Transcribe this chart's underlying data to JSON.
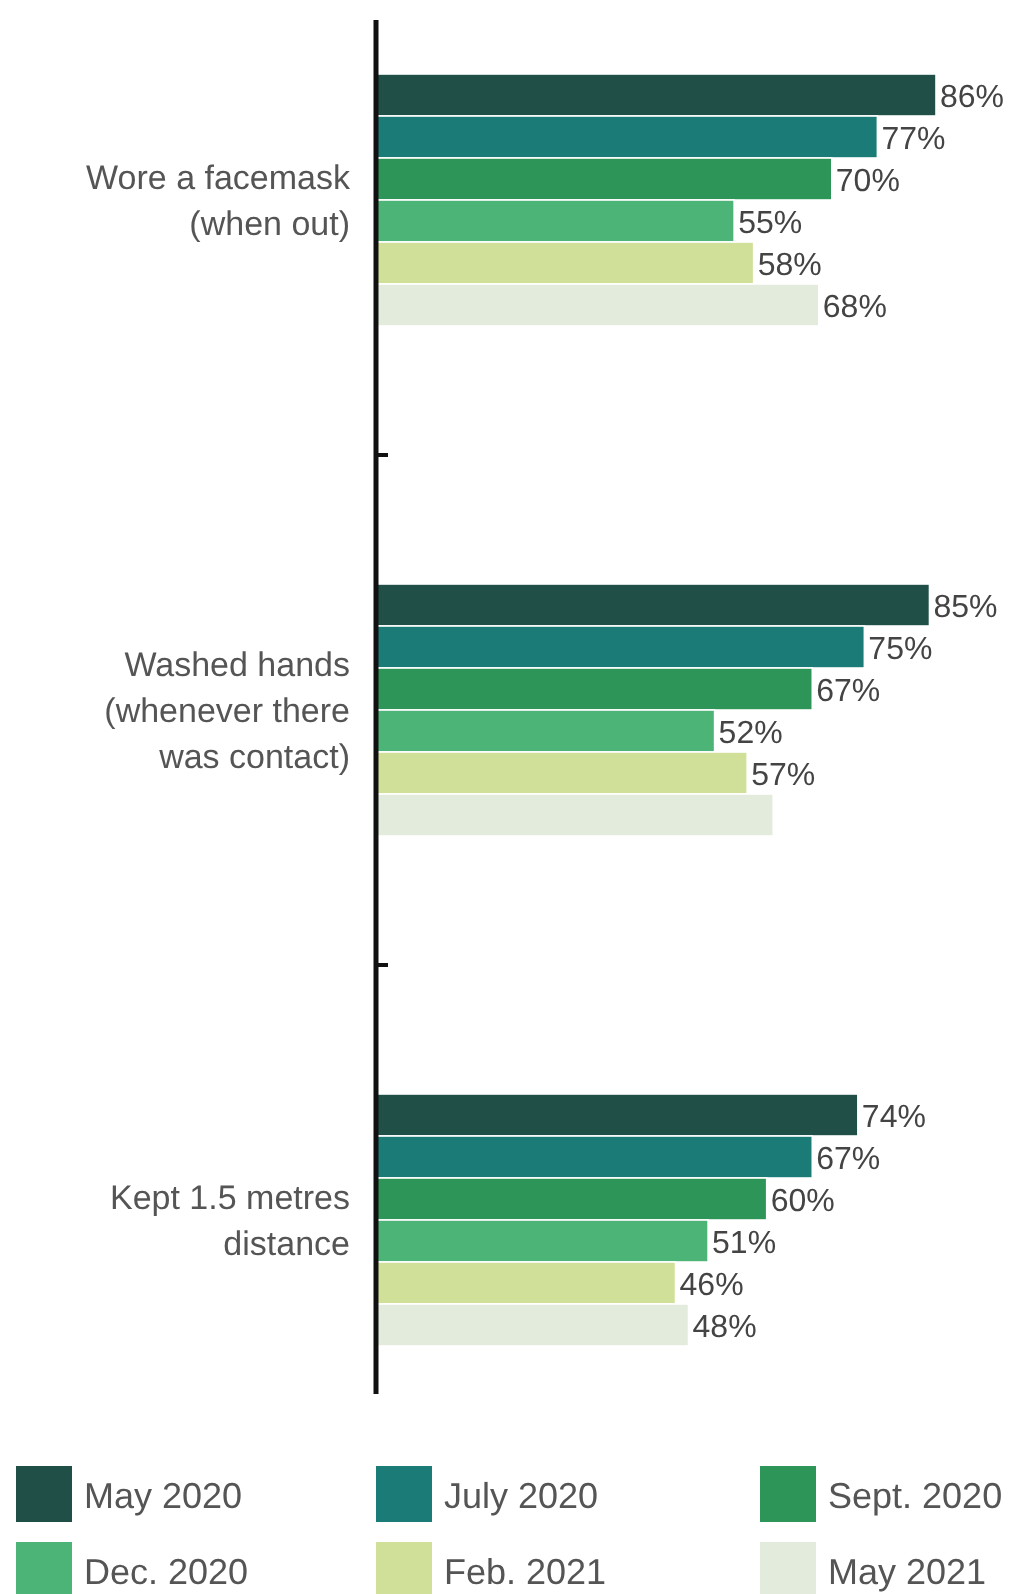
{
  "chart_data": {
    "type": "bar",
    "orientation": "horizontal",
    "categories": [
      "Wore a facemask (when out)",
      "Washed hands (whenever there was contact)",
      "Kept 1.5 metres distance"
    ],
    "tick_labels": "y",
    "legend": "bottom",
    "series": [
      {
        "name": "May 2020",
        "color": "#1f4f47",
        "values": [
          86,
          85,
          74
        ],
        "value_labels": [
          "86%",
          "85%",
          "74%"
        ]
      },
      {
        "name": "July 2020",
        "color": "#1b7c77",
        "values": [
          77,
          75,
          67
        ],
        "value_labels": [
          "77%",
          "75%",
          "67%"
        ]
      },
      {
        "name": "Sept. 2020",
        "color": "#2e9558",
        "values": [
          70,
          67,
          60
        ],
        "value_labels": [
          "70%",
          "67%",
          "60%"
        ]
      },
      {
        "name": "Dec. 2020",
        "color": "#4bb476",
        "values": [
          55,
          52,
          51
        ],
        "value_labels": [
          "55%",
          "52%",
          "51%"
        ]
      },
      {
        "name": "Feb. 2021",
        "color": "#d1e099",
        "values": [
          58,
          57,
          46
        ],
        "value_labels": [
          "58%",
          "57%",
          "46%"
        ]
      },
      {
        "name": "May 2021",
        "color": "#e3ecdc",
        "values": [
          68,
          61,
          48
        ],
        "value_labels": [
          "68%",
          null,
          "48%"
        ]
      }
    ]
  }
}
